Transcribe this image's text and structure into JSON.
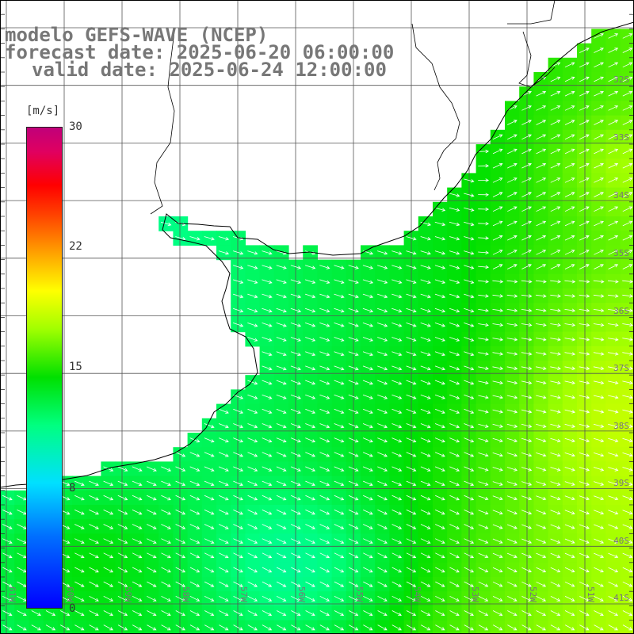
{
  "title": {
    "line1": "modelo GEFS-WAVE (NCEP)",
    "line2": "forecast date: 2025-06-20 06:00:00",
    "line3": "valid date: 2025-06-24 12:00:00"
  },
  "colorbar": {
    "unit": "[m/s]",
    "ticks": [
      "30",
      "22",
      "15",
      "8",
      "0"
    ],
    "tick_values": [
      30,
      22,
      15,
      8,
      0
    ],
    "min": 0,
    "max": 30
  },
  "lat_labels": [
    "32S",
    "33S",
    "34S",
    "35S",
    "36S",
    "37S",
    "38S",
    "39S",
    "40S",
    "41S"
  ],
  "lon_labels": [
    "61W",
    "60W",
    "59W",
    "58W",
    "57W",
    "56W",
    "55W",
    "54W",
    "53W",
    "52W",
    "51W"
  ],
  "colors": {
    "land": "#ffffff",
    "grid": "#555555",
    "coast": "#000000",
    "arrow": "#ffffff",
    "title_text": "#777777"
  }
}
